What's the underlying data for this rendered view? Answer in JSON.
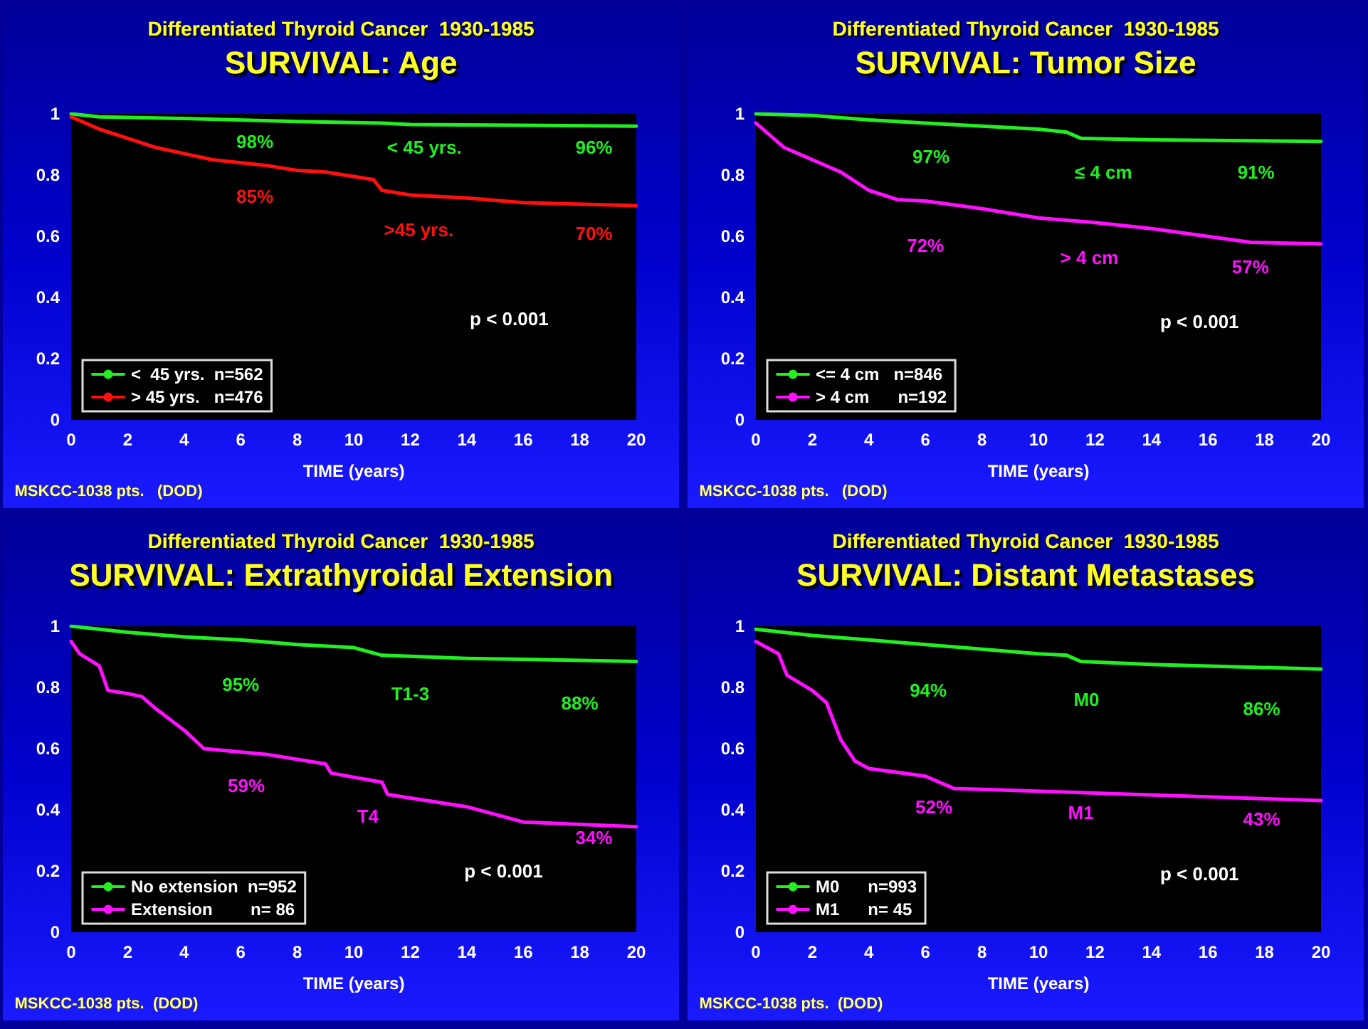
{
  "chart_data": [
    {
      "type": "line",
      "subtitle": "Differentiated Thyroid Cancer  1930-1985",
      "title": "SURVIVAL: Age",
      "xlabel": "TIME (years)",
      "xlim": [
        0,
        20
      ],
      "xticks": [
        0,
        2,
        4,
        6,
        8,
        10,
        12,
        14,
        16,
        18,
        20
      ],
      "ylim": [
        0,
        1
      ],
      "yticks": [
        0,
        0.2,
        0.4,
        0.6,
        0.8,
        1
      ],
      "grid": false,
      "legend": "bottom left",
      "marker": "none",
      "line_style": "solid",
      "series": [
        {
          "name": "<  45 yrs.  n=562",
          "color": "#22ee22",
          "x": [
            0,
            1,
            4,
            8,
            11,
            12,
            20
          ],
          "values": [
            1,
            0.99,
            0.985,
            0.975,
            0.97,
            0.965,
            0.96
          ]
        },
        {
          "name": "> 45 yrs.   n=476",
          "color": "#ff1010",
          "x": [
            0,
            0.5,
            1,
            2,
            3,
            4,
            5,
            6,
            7,
            8,
            9,
            10.7,
            11,
            12,
            14,
            16,
            20
          ],
          "values": [
            0.99,
            0.97,
            0.95,
            0.92,
            0.89,
            0.87,
            0.85,
            0.84,
            0.83,
            0.815,
            0.81,
            0.785,
            0.75,
            0.735,
            0.725,
            0.71,
            0.7
          ]
        }
      ],
      "annotations": [
        "98%",
        "< 45 yrs.",
        "96%",
        "85%",
        ">45 yrs.",
        "70%",
        "p < 0.001",
        "MSKCC-1038 pts.   (DOD)"
      ]
    },
    {
      "type": "line",
      "subtitle": "Differentiated Thyroid Cancer  1930-1985",
      "title": "SURVIVAL: Tumor Size",
      "xlabel": "TIME (years)",
      "xlim": [
        0,
        20
      ],
      "xticks": [
        0,
        2,
        4,
        6,
        8,
        10,
        12,
        14,
        16,
        18,
        20
      ],
      "ylim": [
        0,
        1
      ],
      "yticks": [
        0,
        0.2,
        0.4,
        0.6,
        0.8,
        1
      ],
      "grid": false,
      "legend": "bottom left",
      "marker": "none",
      "line_style": "solid",
      "series": [
        {
          "name": "<= 4 cm   n=846",
          "color": "#22ee22",
          "x": [
            0,
            2,
            4,
            6,
            8,
            10,
            11,
            11.5,
            14,
            20
          ],
          "values": [
            1,
            0.995,
            0.98,
            0.97,
            0.96,
            0.95,
            0.94,
            0.92,
            0.915,
            0.91
          ]
        },
        {
          "name": "> 4 cm      n=192",
          "color": "#ff10ff",
          "x": [
            0,
            0.5,
            1,
            2,
            3,
            4,
            5,
            6,
            8,
            10,
            12,
            14,
            17.5,
            20
          ],
          "values": [
            0.97,
            0.93,
            0.89,
            0.85,
            0.81,
            0.75,
            0.72,
            0.715,
            0.69,
            0.66,
            0.645,
            0.625,
            0.58,
            0.575
          ]
        }
      ],
      "annotations": [
        "97%",
        "≤ 4 cm",
        "91%",
        "72%",
        "> 4 cm",
        "57%",
        "p < 0.001",
        "MSKCC-1038 pts.   (DOD)"
      ]
    },
    {
      "type": "line",
      "subtitle": "Differentiated Thyroid Cancer  1930-1985",
      "title": "SURVIVAL: Extrathyroidal Extension",
      "xlabel": "TIME (years)",
      "xlim": [
        0,
        20
      ],
      "xticks": [
        0,
        2,
        4,
        6,
        8,
        10,
        12,
        14,
        16,
        18,
        20
      ],
      "ylim": [
        0,
        1
      ],
      "yticks": [
        0,
        0.2,
        0.4,
        0.6,
        0.8,
        1
      ],
      "grid": false,
      "legend": "bottom left",
      "marker": "none",
      "line_style": "solid",
      "series": [
        {
          "name": "No extension  n=952",
          "color": "#22ee22",
          "x": [
            0,
            1,
            2,
            4,
            6,
            8,
            10,
            11,
            14,
            20
          ],
          "values": [
            1,
            0.99,
            0.98,
            0.965,
            0.955,
            0.94,
            0.93,
            0.905,
            0.895,
            0.885
          ]
        },
        {
          "name": "Extension        n= 86",
          "color": "#ff10ff",
          "x": [
            0,
            0.3,
            1,
            1.3,
            2,
            2.5,
            3,
            4,
            4.7,
            7,
            9,
            9.2,
            11,
            11.2,
            14,
            16,
            20
          ],
          "values": [
            0.95,
            0.91,
            0.87,
            0.79,
            0.78,
            0.77,
            0.73,
            0.66,
            0.6,
            0.58,
            0.55,
            0.52,
            0.49,
            0.45,
            0.41,
            0.36,
            0.345
          ]
        }
      ],
      "annotations": [
        "95%",
        "T1-3",
        "88%",
        "59%",
        "T4",
        "34%",
        "p < 0.001",
        "MSKCC-1038 pts.  (DOD)"
      ]
    },
    {
      "type": "line",
      "subtitle": "Differentiated Thyroid Cancer  1930-1985",
      "title": "SURVIVAL: Distant Metastases",
      "xlabel": "TIME (years)",
      "xlim": [
        0,
        20
      ],
      "xticks": [
        0,
        2,
        4,
        6,
        8,
        10,
        12,
        14,
        16,
        18,
        20
      ],
      "ylim": [
        0,
        1
      ],
      "yticks": [
        0,
        0.2,
        0.4,
        0.6,
        0.8,
        1
      ],
      "grid": false,
      "legend": "bottom left",
      "marker": "none",
      "line_style": "solid",
      "series": [
        {
          "name": "M0      n=993",
          "color": "#22ee22",
          "x": [
            0,
            2,
            4,
            6,
            8,
            10,
            11,
            11.5,
            14,
            20
          ],
          "values": [
            0.99,
            0.97,
            0.955,
            0.94,
            0.925,
            0.91,
            0.905,
            0.885,
            0.875,
            0.86
          ]
        },
        {
          "name": "M1      n= 45",
          "color": "#ff10ff",
          "x": [
            0,
            0.8,
            1.1,
            2,
            2.5,
            3,
            3.5,
            4,
            6,
            7,
            20
          ],
          "values": [
            0.95,
            0.91,
            0.84,
            0.79,
            0.75,
            0.63,
            0.56,
            0.535,
            0.51,
            0.47,
            0.43
          ]
        }
      ],
      "annotations": [
        "94%",
        "M0",
        "86%",
        "52%",
        "M1",
        "43%",
        "p < 0.001",
        "MSKCC-1038 pts.  (DOD)"
      ]
    }
  ]
}
